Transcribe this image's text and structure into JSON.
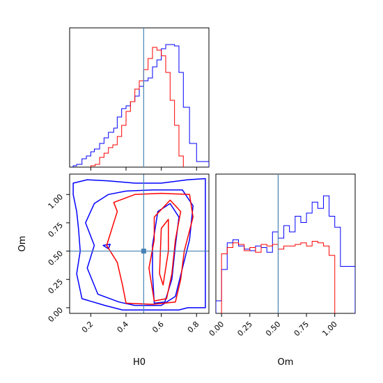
{
  "chart_data": {
    "type": "corner",
    "parameters": [
      "H0",
      "Om"
    ],
    "truths": {
      "H0": 0.5,
      "Om": 0.5
    },
    "truth_color": "#4682b4",
    "series": [
      {
        "color": "#0000ff",
        "role": "wider posterior"
      },
      {
        "color": "#ff0000",
        "role": "narrower posterior"
      }
    ],
    "H0_axis": {
      "range": [
        0.08,
        0.87
      ],
      "ticks": [
        "0.2",
        "0.4",
        "0.6",
        "0.8"
      ],
      "tick_values": [
        0.2,
        0.4,
        0.6,
        0.8
      ],
      "xlabel": "H0"
    },
    "Om_axis": {
      "range": [
        -0.05,
        1.18
      ],
      "ticks": [
        "0.00",
        "0.25",
        "0.50",
        "0.75",
        "1.00"
      ],
      "tick_values": [
        0,
        0.25,
        0.5,
        0.75,
        1.0
      ],
      "label": "Om"
    },
    "hist_H0": {
      "bin_width": 0.025,
      "blue": {
        "bins": [
          [
            0.1,
            0.12,
            1
          ],
          [
            0.12,
            0.15,
            2
          ],
          [
            0.15,
            0.175,
            6
          ],
          [
            0.175,
            0.2,
            8
          ],
          [
            0.2,
            0.22,
            11
          ],
          [
            0.22,
            0.25,
            13
          ],
          [
            0.25,
            0.275,
            17
          ],
          [
            0.275,
            0.3,
            21
          ],
          [
            0.3,
            0.33,
            25
          ],
          [
            0.33,
            0.35,
            28
          ],
          [
            0.35,
            0.375,
            36
          ],
          [
            0.375,
            0.4,
            42
          ],
          [
            0.4,
            0.425,
            44
          ],
          [
            0.425,
            0.45,
            47
          ],
          [
            0.45,
            0.475,
            51
          ],
          [
            0.475,
            0.5,
            58
          ],
          [
            0.5,
            0.525,
            62
          ],
          [
            0.525,
            0.55,
            64
          ],
          [
            0.55,
            0.575,
            72
          ],
          [
            0.575,
            0.6,
            77
          ],
          [
            0.6,
            0.625,
            85
          ],
          [
            0.625,
            0.65,
            88
          ],
          [
            0.65,
            0.675,
            88
          ],
          [
            0.675,
            0.7,
            87
          ],
          [
            0.7,
            0.725,
            68
          ],
          [
            0.725,
            0.76,
            43
          ],
          [
            0.76,
            0.8,
            17
          ],
          [
            0.8,
            0.87,
            4
          ]
        ]
      },
      "red": {
        "bins": [
          [
            0.2,
            0.225,
            1
          ],
          [
            0.225,
            0.25,
            2
          ],
          [
            0.25,
            0.275,
            7
          ],
          [
            0.275,
            0.3,
            10
          ],
          [
            0.3,
            0.325,
            14
          ],
          [
            0.325,
            0.35,
            16
          ],
          [
            0.35,
            0.375,
            22
          ],
          [
            0.375,
            0.4,
            30
          ],
          [
            0.4,
            0.425,
            40
          ],
          [
            0.425,
            0.45,
            47
          ],
          [
            0.45,
            0.475,
            56
          ],
          [
            0.475,
            0.5,
            62
          ],
          [
            0.5,
            0.525,
            70
          ],
          [
            0.525,
            0.55,
            78
          ],
          [
            0.55,
            0.575,
            86
          ],
          [
            0.575,
            0.6,
            84
          ],
          [
            0.6,
            0.625,
            80
          ],
          [
            0.625,
            0.65,
            68
          ],
          [
            0.65,
            0.675,
            48
          ],
          [
            0.675,
            0.7,
            30
          ],
          [
            0.7,
            0.725,
            8
          ]
        ]
      }
    },
    "hist_Om": {
      "blue": {
        "bins": [
          [
            -0.05,
            0.0,
            8
          ],
          [
            0.0,
            0.05,
            28
          ],
          [
            0.05,
            0.1,
            45
          ],
          [
            0.1,
            0.15,
            47
          ],
          [
            0.15,
            0.2,
            43
          ],
          [
            0.2,
            0.25,
            41
          ],
          [
            0.25,
            0.3,
            40
          ],
          [
            0.3,
            0.35,
            43
          ],
          [
            0.35,
            0.4,
            42
          ],
          [
            0.4,
            0.45,
            39
          ],
          [
            0.45,
            0.5,
            52
          ],
          [
            0.5,
            0.55,
            48
          ],
          [
            0.55,
            0.6,
            56
          ],
          [
            0.6,
            0.65,
            52
          ],
          [
            0.65,
            0.7,
            62
          ],
          [
            0.7,
            0.75,
            58
          ],
          [
            0.75,
            0.8,
            64
          ],
          [
            0.8,
            0.85,
            71
          ],
          [
            0.85,
            0.9,
            67
          ],
          [
            0.9,
            0.95,
            75
          ],
          [
            0.95,
            1.0,
            62
          ],
          [
            1.0,
            1.05,
            55
          ],
          [
            1.05,
            1.18,
            30
          ]
        ]
      },
      "red": {
        "bins": [
          [
            0.0,
            0.05,
            38
          ],
          [
            0.05,
            0.1,
            42
          ],
          [
            0.1,
            0.15,
            45
          ],
          [
            0.15,
            0.2,
            44
          ],
          [
            0.2,
            0.25,
            40
          ],
          [
            0.25,
            0.3,
            42
          ],
          [
            0.3,
            0.35,
            39
          ],
          [
            0.35,
            0.4,
            44
          ],
          [
            0.4,
            0.45,
            43
          ],
          [
            0.45,
            0.5,
            44
          ],
          [
            0.5,
            0.55,
            41
          ],
          [
            0.55,
            0.6,
            43
          ],
          [
            0.6,
            0.65,
            43
          ],
          [
            0.65,
            0.7,
            44
          ],
          [
            0.7,
            0.75,
            45
          ],
          [
            0.75,
            0.8,
            43
          ],
          [
            0.8,
            0.85,
            46
          ],
          [
            0.85,
            0.9,
            45
          ],
          [
            0.9,
            0.95,
            43
          ],
          [
            0.95,
            1.0,
            37
          ]
        ]
      }
    },
    "contours": {
      "blue": [
        [
          [
            0.1,
            1.1
          ],
          [
            0.18,
            1.13
          ],
          [
            0.3,
            1.12
          ],
          [
            0.45,
            1.1
          ],
          [
            0.6,
            1.1
          ],
          [
            0.75,
            1.13
          ],
          [
            0.85,
            1.14
          ],
          [
            0.85,
            0.0
          ],
          [
            0.75,
            0.0
          ],
          [
            0.7,
            -0.02
          ],
          [
            0.55,
            -0.02
          ],
          [
            0.38,
            -0.02
          ],
          [
            0.28,
            0.02
          ],
          [
            0.15,
            0.08
          ],
          [
            0.12,
            0.3
          ],
          [
            0.14,
            0.5
          ],
          [
            0.13,
            0.7
          ],
          [
            0.12,
            0.85
          ],
          [
            0.1,
            1.0
          ],
          [
            0.1,
            1.1
          ]
        ],
        [
          [
            0.22,
            0.92
          ],
          [
            0.3,
            1.0
          ],
          [
            0.4,
            1.03
          ],
          [
            0.55,
            1.04
          ],
          [
            0.72,
            1.04
          ],
          [
            0.78,
            0.9
          ],
          [
            0.76,
            0.6
          ],
          [
            0.72,
            0.35
          ],
          [
            0.68,
            0.1
          ],
          [
            0.6,
            0.02
          ],
          [
            0.45,
            0.02
          ],
          [
            0.36,
            0.05
          ],
          [
            0.24,
            0.12
          ],
          [
            0.18,
            0.35
          ],
          [
            0.22,
            0.55
          ],
          [
            0.17,
            0.75
          ],
          [
            0.22,
            0.92
          ]
        ],
        [
          [
            0.58,
            0.85
          ],
          [
            0.65,
            0.92
          ],
          [
            0.7,
            0.8
          ],
          [
            0.68,
            0.55
          ],
          [
            0.66,
            0.25
          ],
          [
            0.62,
            0.05
          ],
          [
            0.56,
            0.04
          ],
          [
            0.55,
            0.3
          ],
          [
            0.55,
            0.55
          ],
          [
            0.57,
            0.75
          ],
          [
            0.58,
            0.85
          ]
        ],
        [
          [
            0.27,
            0.55
          ],
          [
            0.31,
            0.56
          ],
          [
            0.3,
            0.52
          ],
          [
            0.27,
            0.55
          ]
        ]
      ],
      "red": [
        [
          [
            0.33,
            0.93
          ],
          [
            0.45,
            1.0
          ],
          [
            0.6,
            1.01
          ],
          [
            0.76,
            1.0
          ],
          [
            0.78,
            0.8
          ],
          [
            0.73,
            0.5
          ],
          [
            0.71,
            0.25
          ],
          [
            0.68,
            0.05
          ],
          [
            0.55,
            0.03
          ],
          [
            0.4,
            0.04
          ],
          [
            0.38,
            0.2
          ],
          [
            0.35,
            0.4
          ],
          [
            0.29,
            0.55
          ],
          [
            0.32,
            0.7
          ],
          [
            0.35,
            0.85
          ],
          [
            0.33,
            0.93
          ]
        ],
        [
          [
            0.56,
            0.8
          ],
          [
            0.65,
            0.95
          ],
          [
            0.71,
            0.85
          ],
          [
            0.68,
            0.6
          ],
          [
            0.66,
            0.3
          ],
          [
            0.63,
            0.08
          ],
          [
            0.56,
            0.06
          ],
          [
            0.53,
            0.35
          ],
          [
            0.56,
            0.6
          ],
          [
            0.56,
            0.8
          ]
        ],
        [
          [
            0.6,
            0.7
          ],
          [
            0.64,
            0.78
          ],
          [
            0.64,
            0.5
          ],
          [
            0.61,
            0.2
          ],
          [
            0.59,
            0.3
          ],
          [
            0.6,
            0.7
          ]
        ]
      ]
    }
  }
}
